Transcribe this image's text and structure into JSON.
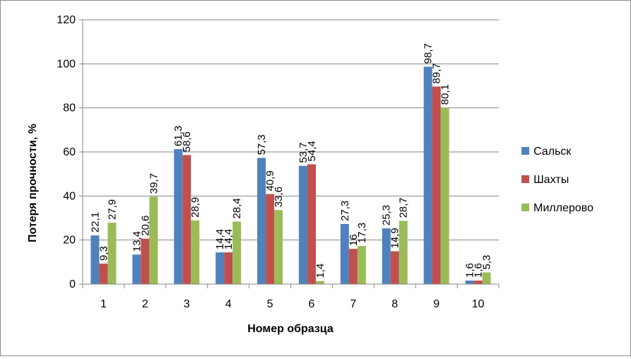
{
  "chart_data": {
    "type": "bar",
    "title": "",
    "xlabel": "Номер образца",
    "ylabel": "Потеря прочности, %",
    "ylim": [
      0,
      120
    ],
    "yticks": [
      "0",
      "20",
      "40",
      "60",
      "80",
      "100",
      "120"
    ],
    "grid": true,
    "legend_position": "right",
    "categories": [
      "1",
      "2",
      "3",
      "4",
      "5",
      "6",
      "7",
      "8",
      "9",
      "10"
    ],
    "series": [
      {
        "name": "Сальск",
        "color": "#4f81bd",
        "values": [
          22.1,
          13.4,
          61.3,
          14.4,
          57.3,
          53.7,
          27.3,
          25.3,
          98.7,
          1.6
        ],
        "labels": [
          "22,1",
          "13,4",
          "61,3",
          "14,4",
          "57,3",
          "53,7",
          "27,3",
          "25,3",
          "98,7",
          "1,6"
        ]
      },
      {
        "name": "Шахты",
        "color": "#c0504d",
        "values": [
          9.3,
          20.6,
          58.6,
          14.4,
          40.9,
          54.4,
          16,
          14.9,
          89.7,
          1.6
        ],
        "labels": [
          "9,3",
          "20,6",
          "58,6",
          "14,4",
          "40,9",
          "54,4",
          "16",
          "14,9",
          "89,7",
          "1,6"
        ]
      },
      {
        "name": "Миллерово",
        "color": "#9bbb59",
        "values": [
          27.9,
          39.7,
          28.9,
          28.4,
          33.6,
          1.4,
          17.3,
          28.7,
          80.1,
          5.3
        ],
        "labels": [
          "27,9",
          "39,7",
          "28,9",
          "28,4",
          "33,6",
          "1,4",
          "17,3",
          "28,7",
          "80,1",
          "5,3"
        ]
      }
    ]
  }
}
